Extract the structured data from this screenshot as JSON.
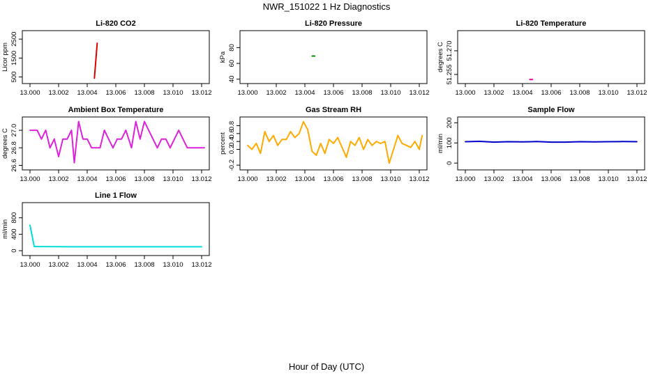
{
  "figure": {
    "title": "NWR_151022  1 Hz Diagnostics",
    "xlabel": "Hour of Day (UTC)"
  },
  "chart_data": [
    {
      "id": "co2",
      "type": "line",
      "title": "Li-820 CO2",
      "ylabel": "Licor ppm",
      "color": "#dd0000",
      "xlim": [
        13.0,
        13.012
      ],
      "ylim": [
        300,
        2800
      ],
      "yticks": [
        500,
        1500,
        2500
      ],
      "ytick_labels": [
        "500",
        "1500",
        "2500"
      ],
      "xticks": [
        13.0,
        13.002,
        13.004,
        13.006,
        13.008,
        13.01,
        13.012
      ],
      "xtick_labels": [
        "13.000",
        "13.002",
        "13.004",
        "13.006",
        "13.008",
        "13.010",
        "13.012"
      ],
      "x": [
        13.0045,
        13.0046,
        13.0047
      ],
      "y": [
        430,
        1350,
        2290
      ]
    },
    {
      "id": "pressure",
      "type": "line",
      "title": "Li-820 Pressure",
      "ylabel": "kPa",
      "color": "#008800",
      "xlim": [
        13.0,
        13.012
      ],
      "ylim": [
        38,
        98
      ],
      "yticks": [
        40,
        60,
        80
      ],
      "ytick_labels": [
        "40",
        "60",
        "80"
      ],
      "xticks": [
        13.0,
        13.002,
        13.004,
        13.006,
        13.008,
        13.01,
        13.012
      ],
      "xtick_labels": [
        "13.000",
        "13.002",
        "13.004",
        "13.006",
        "13.008",
        "13.010",
        "13.012"
      ],
      "x": [
        13.0045,
        13.0046,
        13.0047
      ],
      "y": [
        69.3,
        69.3,
        69.3
      ]
    },
    {
      "id": "temperature",
      "type": "line",
      "title": "Li-820 Temperature",
      "ylabel": "degrees C",
      "color": "#ee00aa",
      "xlim": [
        13.0,
        13.012
      ],
      "ylim": [
        51.251,
        51.281
      ],
      "yticks": [
        51.255,
        51.27
      ],
      "ytick_labels": [
        "51.255",
        "51.270"
      ],
      "xticks": [
        13.0,
        13.002,
        13.004,
        13.006,
        13.008,
        13.01,
        13.012
      ],
      "xtick_labels": [
        "13.000",
        "13.002",
        "13.004",
        "13.006",
        "13.008",
        "13.010",
        "13.012"
      ],
      "x": [
        13.0045,
        13.0046,
        13.0047
      ],
      "y": [
        51.2518,
        51.2518,
        51.2518
      ]
    },
    {
      "id": "box_temp",
      "type": "line",
      "title": "Ambient Box Temperature",
      "ylabel": "degrees C",
      "color": "#dd22dd",
      "xlim": [
        13.0,
        13.012
      ],
      "ylim": [
        26.58,
        27.12
      ],
      "yticks": [
        26.6,
        26.8,
        27.0
      ],
      "ytick_labels": [
        "26.6",
        "26.8",
        "27.0"
      ],
      "xticks": [
        13.0,
        13.002,
        13.004,
        13.006,
        13.008,
        13.01,
        13.012
      ],
      "xtick_labels": [
        "13.000",
        "13.002",
        "13.004",
        "13.006",
        "13.008",
        "13.010",
        "13.012"
      ],
      "x": [
        13.0,
        13.0005,
        13.0008,
        13.0011,
        13.0014,
        13.0017,
        13.002,
        13.0023,
        13.0026,
        13.0029,
        13.0031,
        13.0034,
        13.0037,
        13.004,
        13.0043,
        13.0046,
        13.0049,
        13.0052,
        13.0055,
        13.0058,
        13.0061,
        13.0064,
        13.0067,
        13.0071,
        13.0074,
        13.0077,
        13.008,
        13.0083,
        13.0086,
        13.0089,
        13.0092,
        13.0095,
        13.0098,
        13.0101,
        13.0104,
        13.0107,
        13.011,
        13.0113,
        13.0116,
        13.0119,
        13.0122
      ],
      "y": [
        27.0,
        27.0,
        26.9,
        27.0,
        26.8,
        26.9,
        26.7,
        26.9,
        26.9,
        27.0,
        26.63,
        27.1,
        26.9,
        26.9,
        26.8,
        26.8,
        26.8,
        27.0,
        26.9,
        26.8,
        26.9,
        26.9,
        27.0,
        26.8,
        27.1,
        26.9,
        27.1,
        27.0,
        26.9,
        26.8,
        26.9,
        26.9,
        26.8,
        26.9,
        27.0,
        26.9,
        26.8,
        26.8,
        26.8,
        26.8,
        26.8
      ]
    },
    {
      "id": "rh",
      "type": "line",
      "title": "Gas Stream RH",
      "ylabel": "percent",
      "color": "#ffaa00",
      "xlim": [
        13.0,
        13.012
      ],
      "ylim": [
        -0.25,
        0.95
      ],
      "yticks": [
        -0.2,
        0.2,
        0.4,
        0.6,
        0.8
      ],
      "ytick_labels": [
        "-0.2",
        "0.2",
        "0.4",
        "0.6",
        "0.8"
      ],
      "xticks": [
        13.0,
        13.002,
        13.004,
        13.006,
        13.008,
        13.01,
        13.012
      ],
      "xtick_labels": [
        "13.000",
        "13.002",
        "13.004",
        "13.006",
        "13.008",
        "13.010",
        "13.012"
      ],
      "x": [
        13.0,
        13.0003,
        13.0006,
        13.0009,
        13.0012,
        13.0015,
        13.0018,
        13.0021,
        13.0024,
        13.0027,
        13.003,
        13.0033,
        13.0036,
        13.0039,
        13.0042,
        13.0045,
        13.0048,
        13.0051,
        13.0054,
        13.0057,
        13.006,
        13.0063,
        13.0066,
        13.0069,
        13.0072,
        13.0075,
        13.0078,
        13.0081,
        13.0084,
        13.0087,
        13.009,
        13.0093,
        13.0096,
        13.0099,
        13.0102,
        13.0105,
        13.0108,
        13.0111,
        13.0114,
        13.0117,
        13.012,
        13.0122
      ],
      "y": [
        0.3,
        0.2,
        0.35,
        0.1,
        0.65,
        0.4,
        0.55,
        0.3,
        0.45,
        0.45,
        0.65,
        0.5,
        0.6,
        0.9,
        0.7,
        0.15,
        0.05,
        0.35,
        0.1,
        0.45,
        0.35,
        0.5,
        0.25,
        0.0,
        0.4,
        0.3,
        0.5,
        0.2,
        0.45,
        0.3,
        0.4,
        0.35,
        0.4,
        -0.15,
        0.2,
        0.55,
        0.35,
        0.3,
        0.25,
        0.4,
        0.2,
        0.55
      ]
    },
    {
      "id": "sample_flow",
      "type": "line",
      "title": "Sample Flow",
      "ylabel": "ml/min",
      "color": "#0000cc",
      "xlim": [
        13.0,
        13.012
      ],
      "ylim": [
        -20,
        215
      ],
      "yticks": [
        0,
        100,
        200
      ],
      "ytick_labels": [
        "0",
        "100",
        "200"
      ],
      "xticks": [
        13.0,
        13.002,
        13.004,
        13.006,
        13.008,
        13.01,
        13.012
      ],
      "xtick_labels": [
        "13.000",
        "13.002",
        "13.004",
        "13.006",
        "13.008",
        "13.010",
        "13.012"
      ],
      "x": [
        13.0,
        13.001,
        13.002,
        13.003,
        13.004,
        13.005,
        13.006,
        13.007,
        13.008,
        13.009,
        13.01,
        13.011,
        13.012
      ],
      "y": [
        106,
        108,
        104,
        106,
        105,
        107,
        104,
        104,
        106,
        105,
        106,
        107,
        106
      ]
    },
    {
      "id": "line1_flow",
      "type": "line",
      "title": "Line 1 Flow",
      "ylabel": "ml/min",
      "color": "#00dddd",
      "xlim": [
        13.0,
        13.012
      ],
      "ylim": [
        -50,
        1100
      ],
      "yticks": [
        0,
        400,
        800
      ],
      "ytick_labels": [
        "0",
        "400",
        "800"
      ],
      "xticks": [
        13.0,
        13.002,
        13.004,
        13.006,
        13.008,
        13.01,
        13.012
      ],
      "xtick_labels": [
        "13.000",
        "13.002",
        "13.004",
        "13.006",
        "13.008",
        "13.010",
        "13.012"
      ],
      "x": [
        13.0,
        13.0003,
        13.0006,
        13.003,
        13.006,
        13.009,
        13.012
      ],
      "y": [
        620,
        100,
        100,
        95,
        95,
        95,
        95
      ]
    }
  ]
}
